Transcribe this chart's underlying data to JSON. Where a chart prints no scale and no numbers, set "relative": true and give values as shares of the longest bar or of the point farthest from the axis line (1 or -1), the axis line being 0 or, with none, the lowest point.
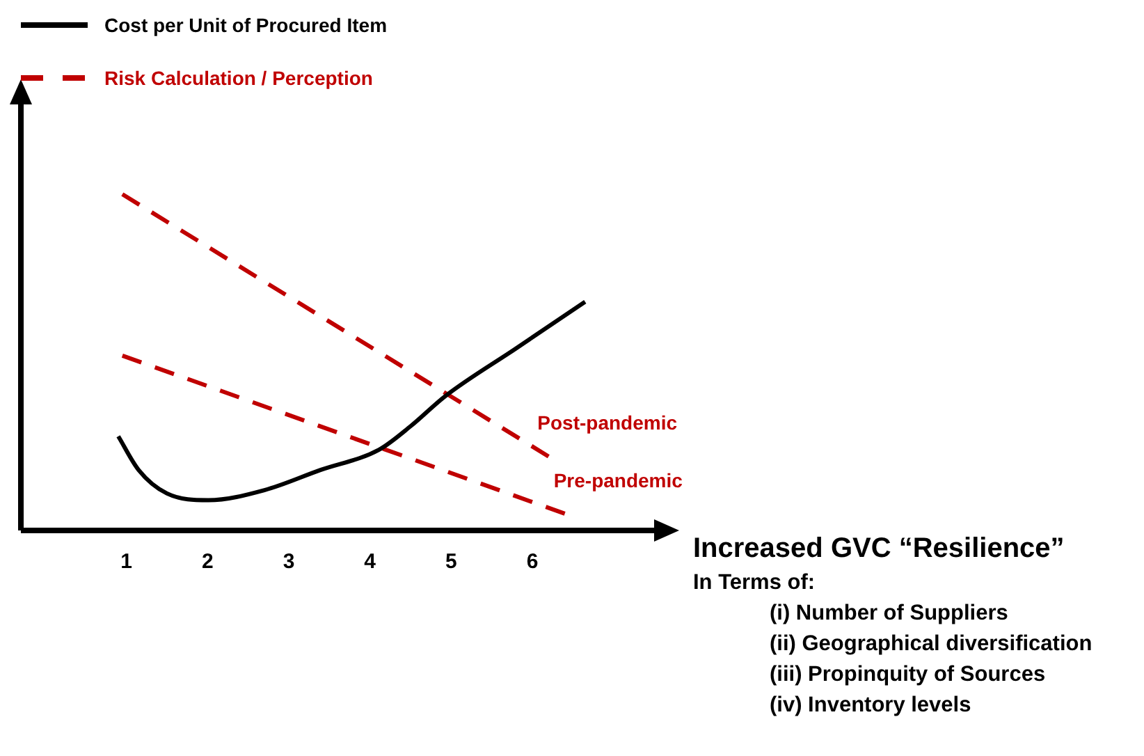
{
  "chart_data": {
    "type": "line",
    "relative": true,
    "xlabel": "Increased GVC “Resilience”",
    "annotations": [
      "Risk Calculation / Perception",
      "In Terms of:",
      "(i)  Number of Suppliers",
      "(ii) Geographical diversification",
      "(iii) Propinquity of Sources",
      "(iv) Inventory levels"
    ],
    "xlim": [
      -0.3,
      7.5
    ],
    "xticks": [
      1,
      2,
      3,
      4,
      5,
      6
    ],
    "grid": false,
    "legend": "top left",
    "marker": "none",
    "series": [
      {
        "name": "Cost per Unit of Procured Item",
        "color": "#000000",
        "line_style": "solid",
        "x": [
          0.9,
          1.15,
          1.5,
          2.01,
          2.7,
          3.39,
          4.11,
          4.5,
          4.93,
          5.79,
          6.65
        ],
        "values": [
          0.28,
          0.18,
          0.11,
          0.09,
          0.12,
          0.18,
          0.24,
          0.31,
          0.4,
          0.54,
          0.68
        ]
      },
      {
        "name": "Post-pandemic",
        "color": "#c00000",
        "line_style": "dashed",
        "x": [
          0.95,
          6.2
        ],
        "values": [
          1.0,
          0.22
        ]
      },
      {
        "name": "Pre-pandemic",
        "color": "#c00000",
        "line_style": "dashed",
        "x": [
          0.95,
          6.4
        ],
        "values": [
          0.52,
          0.05
        ]
      }
    ]
  }
}
